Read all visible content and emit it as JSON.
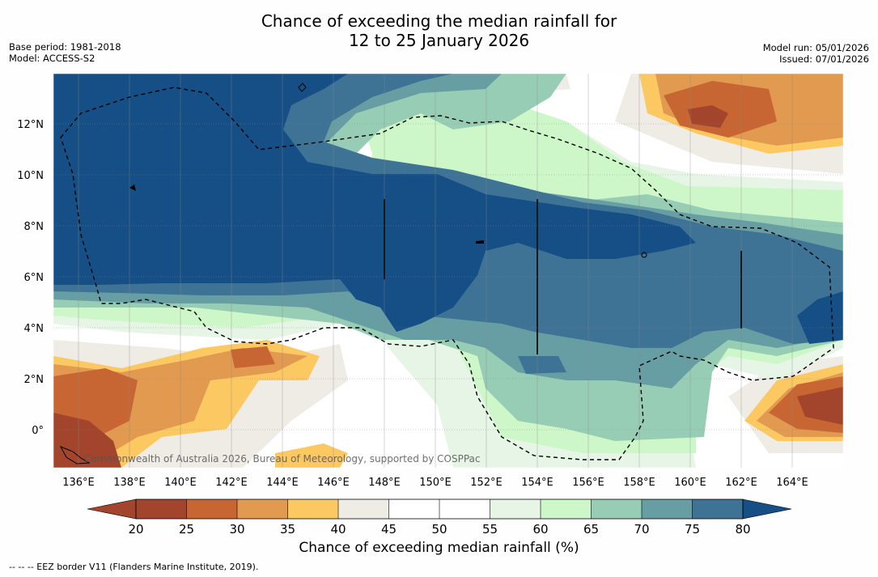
{
  "title": {
    "line1": "Chance of exceeding the median rainfall for",
    "line2": "12 to 25 January 2026"
  },
  "meta": {
    "base_period": "Base period: 1981-2018",
    "model": "Model: ACCESS-S2",
    "model_run": "Model run: 05/01/2026",
    "issued": "Issued: 07/01/2026"
  },
  "map": {
    "lat_labels": [
      "12°N",
      "10°N",
      "8°N",
      "6°N",
      "4°N",
      "2°N",
      "0°"
    ],
    "lon_labels": [
      "136°E",
      "138°E",
      "140°E",
      "142°E",
      "144°E",
      "146°E",
      "148°E",
      "150°E",
      "152°E",
      "154°E",
      "156°E",
      "158°E",
      "160°E",
      "162°E",
      "164°E"
    ],
    "copyright": "Commonwealth of Australia 2026, Bureau of Meteorology, supported by COSPPac",
    "legend_colors": {
      "lt25": "#a3452c",
      "25_30": "#c86633",
      "30_35": "#e19a50",
      "35_40": "#fbc862",
      "40_45": "#efece6",
      "45_55": "#ffffff",
      "55_60": "#e6f5e5",
      "60_65": "#cdf7c9",
      "65_70": "#98cdb5",
      "70_75": "#679ea4",
      "75_80": "#3e7396",
      "gt80": "#154f85"
    }
  },
  "colorbar": {
    "ticks": [
      "20",
      "25",
      "30",
      "35",
      "40",
      "45",
      "50",
      "55",
      "60",
      "65",
      "70",
      "75",
      "80"
    ],
    "label": "Chance of exceeding median rainfall (%)"
  },
  "footer": "--  --  -- EEZ border V11 (Flanders Marine Institute, 2019)."
}
